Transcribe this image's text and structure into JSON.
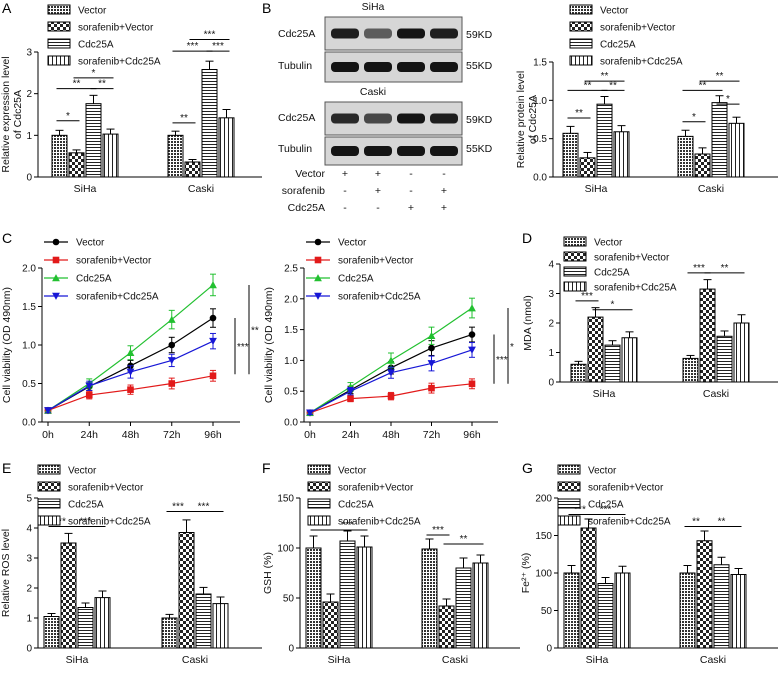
{
  "figure": {
    "panel_letters": [
      "A",
      "B",
      "C",
      "D",
      "E",
      "F",
      "G"
    ],
    "legend": {
      "vector": "Vector",
      "sorafenib_vector": "sorafenib+Vector",
      "cdc25a": "Cdc25A",
      "sorafenib_cdc25a": "sorafenib+Cdc25A"
    },
    "blot": {
      "siha_title": "SiHa",
      "caski_title": "Caski",
      "row_cdc25a": "Cdc25A",
      "row_tubulin": "Tubulin",
      "size_cdc25a": "59KD",
      "size_tubulin": "55KD",
      "treat_labels": [
        "Vector",
        "sorafenib",
        "Cdc25A"
      ],
      "treat_signs": [
        [
          "+",
          "+",
          "-",
          "-"
        ],
        [
          "-",
          "+",
          "-",
          "+"
        ],
        [
          "-",
          "-",
          "+",
          "+"
        ]
      ],
      "band_intensity_siha_cdc25a": [
        0.9,
        0.6,
        0.95,
        0.9
      ],
      "band_intensity_caski_cdc25a": [
        0.85,
        0.7,
        0.95,
        0.9
      ]
    }
  },
  "chart_data": [
    {
      "id": "A",
      "type": "bar",
      "categories": [
        "SiHa",
        "Caski"
      ],
      "ylabel": "Relative expression level of Cdc25A",
      "ylim": [
        0,
        3
      ],
      "yticks": [
        0,
        1,
        2,
        3
      ],
      "series": [
        {
          "name": "Vector",
          "values": [
            1.0,
            1.0
          ],
          "err": [
            0.12,
            0.1
          ]
        },
        {
          "name": "sorafenib+Vector",
          "values": [
            0.58,
            0.36
          ],
          "err": [
            0.07,
            0.06
          ]
        },
        {
          "name": "Cdc25A",
          "values": [
            1.76,
            2.58
          ],
          "err": [
            0.2,
            0.2
          ]
        },
        {
          "name": "sorafenib+Cdc25A",
          "values": [
            1.03,
            1.42
          ],
          "err": [
            0.12,
            0.2
          ]
        }
      ],
      "sig": [
        {
          "g": 0,
          "a": 0,
          "b": 1,
          "y": 1.35,
          "label": "*"
        },
        {
          "g": 0,
          "a": 0,
          "b": 2,
          "y": 2.12,
          "label": "**"
        },
        {
          "g": 0,
          "a": 1,
          "b": 3,
          "y": 2.38,
          "label": "*"
        },
        {
          "g": 0,
          "a": 2,
          "b": 3,
          "y": 2.12,
          "label": "**"
        },
        {
          "g": 1,
          "a": 0,
          "b": 1,
          "y": 1.3,
          "label": "**"
        },
        {
          "g": 1,
          "a": 0,
          "b": 2,
          "y": 3.02,
          "label": "***"
        },
        {
          "g": 1,
          "a": 1,
          "b": 3,
          "y": 3.3,
          "label": "***"
        },
        {
          "g": 1,
          "a": 2,
          "b": 3,
          "y": 3.02,
          "label": "***"
        }
      ]
    },
    {
      "id": "B",
      "type": "bar",
      "categories": [
        "SiHa",
        "Caski"
      ],
      "ylabel": "Relative protein level of Cdc25A",
      "ylim": [
        0,
        1.5
      ],
      "yticks": [
        0.0,
        0.5,
        1.0,
        1.5
      ],
      "series": [
        {
          "name": "Vector",
          "values": [
            0.57,
            0.53
          ],
          "err": [
            0.09,
            0.08
          ]
        },
        {
          "name": "sorafenib+Vector",
          "values": [
            0.25,
            0.3
          ],
          "err": [
            0.07,
            0.08
          ]
        },
        {
          "name": "Cdc25A",
          "values": [
            0.95,
            0.97
          ],
          "err": [
            0.1,
            0.09
          ]
        },
        {
          "name": "sorafenib+Cdc25A",
          "values": [
            0.59,
            0.7
          ],
          "err": [
            0.08,
            0.08
          ]
        }
      ],
      "sig": [
        {
          "g": 0,
          "a": 0,
          "b": 1,
          "y": 0.77,
          "label": "**"
        },
        {
          "g": 0,
          "a": 0,
          "b": 2,
          "y": 1.13,
          "label": "**"
        },
        {
          "g": 0,
          "a": 1,
          "b": 3,
          "y": 1.25,
          "label": "**"
        },
        {
          "g": 0,
          "a": 2,
          "b": 3,
          "y": 1.13,
          "label": "**"
        },
        {
          "g": 1,
          "a": 0,
          "b": 1,
          "y": 0.72,
          "label": "*"
        },
        {
          "g": 1,
          "a": 0,
          "b": 2,
          "y": 1.13,
          "label": "**"
        },
        {
          "g": 1,
          "a": 1,
          "b": 3,
          "y": 1.25,
          "label": "**"
        },
        {
          "g": 1,
          "a": 2,
          "b": 3,
          "y": 0.95,
          "label": "*"
        }
      ]
    },
    {
      "id": "C1",
      "type": "line",
      "x": [
        "0h",
        "24h",
        "48h",
        "72h",
        "96h"
      ],
      "ylabel": "Cell viability (OD 490nm)",
      "ylim": [
        0,
        2
      ],
      "yticks": [
        0.0,
        0.5,
        1.0,
        1.5,
        2.0
      ],
      "series": [
        {
          "name": "Vector",
          "color": "#000000",
          "marker": "circle",
          "values": [
            0.15,
            0.46,
            0.73,
            1.0,
            1.35
          ],
          "err": [
            0.03,
            0.05,
            0.07,
            0.1,
            0.12
          ]
        },
        {
          "name": "sorafenib+Vector",
          "color": "#e21a1a",
          "marker": "square",
          "values": [
            0.15,
            0.35,
            0.42,
            0.5,
            0.6
          ],
          "err": [
            0.03,
            0.05,
            0.06,
            0.07,
            0.07
          ]
        },
        {
          "name": "Cdc25A",
          "color": "#22c030",
          "marker": "triangle",
          "values": [
            0.15,
            0.5,
            0.9,
            1.33,
            1.78
          ],
          "err": [
            0.03,
            0.06,
            0.09,
            0.12,
            0.14
          ]
        },
        {
          "name": "sorafenib+Cdc25A",
          "color": "#1717d6",
          "marker": "triangle-down",
          "values": [
            0.15,
            0.47,
            0.65,
            0.8,
            1.05
          ],
          "err": [
            0.03,
            0.06,
            0.08,
            0.08,
            0.1
          ]
        }
      ],
      "sig_bars": [
        {
          "y1": 0.62,
          "y2": 1.35,
          "label": "***"
        },
        {
          "y1": 0.62,
          "y2": 1.78,
          "label": "**"
        }
      ]
    },
    {
      "id": "C2",
      "type": "line",
      "x": [
        "0h",
        "24h",
        "48h",
        "72h",
        "96h"
      ],
      "ylabel": "Cell viability (OD 490nm)",
      "ylim": [
        0,
        2.5
      ],
      "yticks": [
        0.0,
        0.5,
        1.0,
        1.5,
        2.0,
        2.5
      ],
      "series": [
        {
          "name": "Vector",
          "color": "#000000",
          "marker": "circle",
          "values": [
            0.15,
            0.52,
            0.88,
            1.2,
            1.42
          ],
          "err": [
            0.03,
            0.06,
            0.1,
            0.12,
            0.12
          ]
        },
        {
          "name": "sorafenib+Vector",
          "color": "#e21a1a",
          "marker": "square",
          "values": [
            0.15,
            0.38,
            0.42,
            0.55,
            0.62
          ],
          "err": [
            0.03,
            0.05,
            0.06,
            0.08,
            0.08
          ]
        },
        {
          "name": "Cdc25A",
          "color": "#22c030",
          "marker": "triangle",
          "values": [
            0.15,
            0.57,
            1.0,
            1.4,
            1.85
          ],
          "err": [
            0.03,
            0.07,
            0.12,
            0.14,
            0.16
          ]
        },
        {
          "name": "sorafenib+Cdc25A",
          "color": "#1717d6",
          "marker": "triangle-down",
          "values": [
            0.15,
            0.5,
            0.8,
            0.95,
            1.17
          ],
          "err": [
            0.03,
            0.06,
            0.09,
            0.12,
            0.12
          ]
        }
      ],
      "sig_bars": [
        {
          "y1": 0.62,
          "y2": 1.42,
          "label": "***"
        },
        {
          "y1": 0.62,
          "y2": 1.85,
          "label": "*"
        }
      ]
    },
    {
      "id": "D",
      "type": "bar",
      "categories": [
        "SiHa",
        "Caski"
      ],
      "ylabel": "MDA (nmol)",
      "ylim": [
        0,
        4
      ],
      "yticks": [
        0,
        1,
        2,
        3,
        4
      ],
      "series": [
        {
          "name": "Vector",
          "values": [
            0.6,
            0.8
          ],
          "err": [
            0.1,
            0.1
          ]
        },
        {
          "name": "sorafenib+Vector",
          "values": [
            2.2,
            3.15
          ],
          "err": [
            0.32,
            0.32
          ]
        },
        {
          "name": "Cdc25A",
          "values": [
            1.25,
            1.55
          ],
          "err": [
            0.15,
            0.18
          ]
        },
        {
          "name": "sorafenib+Cdc25A",
          "values": [
            1.5,
            2.0
          ],
          "err": [
            0.2,
            0.28
          ]
        }
      ],
      "sig": [
        {
          "g": 0,
          "a": 0,
          "b": 1,
          "y": 2.75,
          "label": "***"
        },
        {
          "g": 0,
          "a": 1,
          "b": 3,
          "y": 2.45,
          "label": "*"
        },
        {
          "g": 1,
          "a": 0,
          "b": 1,
          "y": 3.7,
          "label": "***"
        },
        {
          "g": 1,
          "a": 1,
          "b": 3,
          "y": 3.7,
          "label": "**"
        }
      ]
    },
    {
      "id": "E",
      "type": "bar",
      "categories": [
        "SiHa",
        "Caski"
      ],
      "ylabel": "Relative ROS level",
      "ylim": [
        0,
        5
      ],
      "yticks": [
        0,
        1,
        2,
        3,
        4,
        5
      ],
      "series": [
        {
          "name": "Vector",
          "values": [
            1.05,
            1.0
          ],
          "err": [
            0.1,
            0.12
          ]
        },
        {
          "name": "sorafenib+Vector",
          "values": [
            3.5,
            3.85
          ],
          "err": [
            0.32,
            0.42
          ]
        },
        {
          "name": "Cdc25A",
          "values": [
            1.35,
            1.8
          ],
          "err": [
            0.15,
            0.22
          ]
        },
        {
          "name": "sorafenib+Cdc25A",
          "values": [
            1.68,
            1.48
          ],
          "err": [
            0.22,
            0.22
          ]
        }
      ],
      "sig": [
        {
          "g": 0,
          "a": 0,
          "b": 1,
          "y": 4.05,
          "label": "***"
        },
        {
          "g": 0,
          "a": 1,
          "b": 3,
          "y": 4.05,
          "label": "***"
        },
        {
          "g": 1,
          "a": 0,
          "b": 1,
          "y": 4.55,
          "label": "***"
        },
        {
          "g": 1,
          "a": 1,
          "b": 3,
          "y": 4.55,
          "label": "***"
        }
      ]
    },
    {
      "id": "F",
      "type": "bar",
      "categories": [
        "SiHa",
        "Caski"
      ],
      "ylabel": "GSH (%)",
      "ylim": [
        0,
        150
      ],
      "yticks": [
        0,
        50,
        100,
        150
      ],
      "series": [
        {
          "name": "Vector",
          "values": [
            100,
            99
          ],
          "err": [
            12,
            10
          ]
        },
        {
          "name": "sorafenib+Vector",
          "values": [
            46,
            42
          ],
          "err": [
            8,
            7
          ]
        },
        {
          "name": "Cdc25A",
          "values": [
            107,
            80
          ],
          "err": [
            10,
            10
          ]
        },
        {
          "name": "sorafenib+Cdc25A",
          "values": [
            101,
            85
          ],
          "err": [
            11,
            8
          ]
        }
      ],
      "sig": [
        {
          "g": 0,
          "a": 0,
          "b": 1,
          "y": 118,
          "label": "***"
        },
        {
          "g": 0,
          "a": 1,
          "b": 3,
          "y": 118,
          "label": "***"
        },
        {
          "g": 1,
          "a": 0,
          "b": 1,
          "y": 113,
          "label": "***"
        },
        {
          "g": 1,
          "a": 1,
          "b": 3,
          "y": 104,
          "label": "**"
        }
      ]
    },
    {
      "id": "G",
      "type": "bar",
      "categories": [
        "SiHa",
        "Caski"
      ],
      "ylabel": "Fe²⁺ (%)",
      "ylim": [
        0,
        200
      ],
      "yticks": [
        0,
        50,
        100,
        150,
        200
      ],
      "series": [
        {
          "name": "Vector",
          "values": [
            100,
            100
          ],
          "err": [
            10,
            10
          ]
        },
        {
          "name": "sorafenib+Vector",
          "values": [
            160,
            143
          ],
          "err": [
            12,
            13
          ]
        },
        {
          "name": "Cdc25A",
          "values": [
            86,
            111
          ],
          "err": [
            8,
            10
          ]
        },
        {
          "name": "sorafenib+Cdc25A",
          "values": [
            100,
            98
          ],
          "err": [
            9,
            8
          ]
        }
      ],
      "sig": [
        {
          "g": 0,
          "a": 0,
          "b": 1,
          "y": 178,
          "label": "***"
        },
        {
          "g": 0,
          "a": 1,
          "b": 3,
          "y": 178,
          "label": "***"
        },
        {
          "g": 1,
          "a": 0,
          "b": 1,
          "y": 162,
          "label": "**"
        },
        {
          "g": 1,
          "a": 1,
          "b": 3,
          "y": 162,
          "label": "**"
        }
      ]
    }
  ]
}
